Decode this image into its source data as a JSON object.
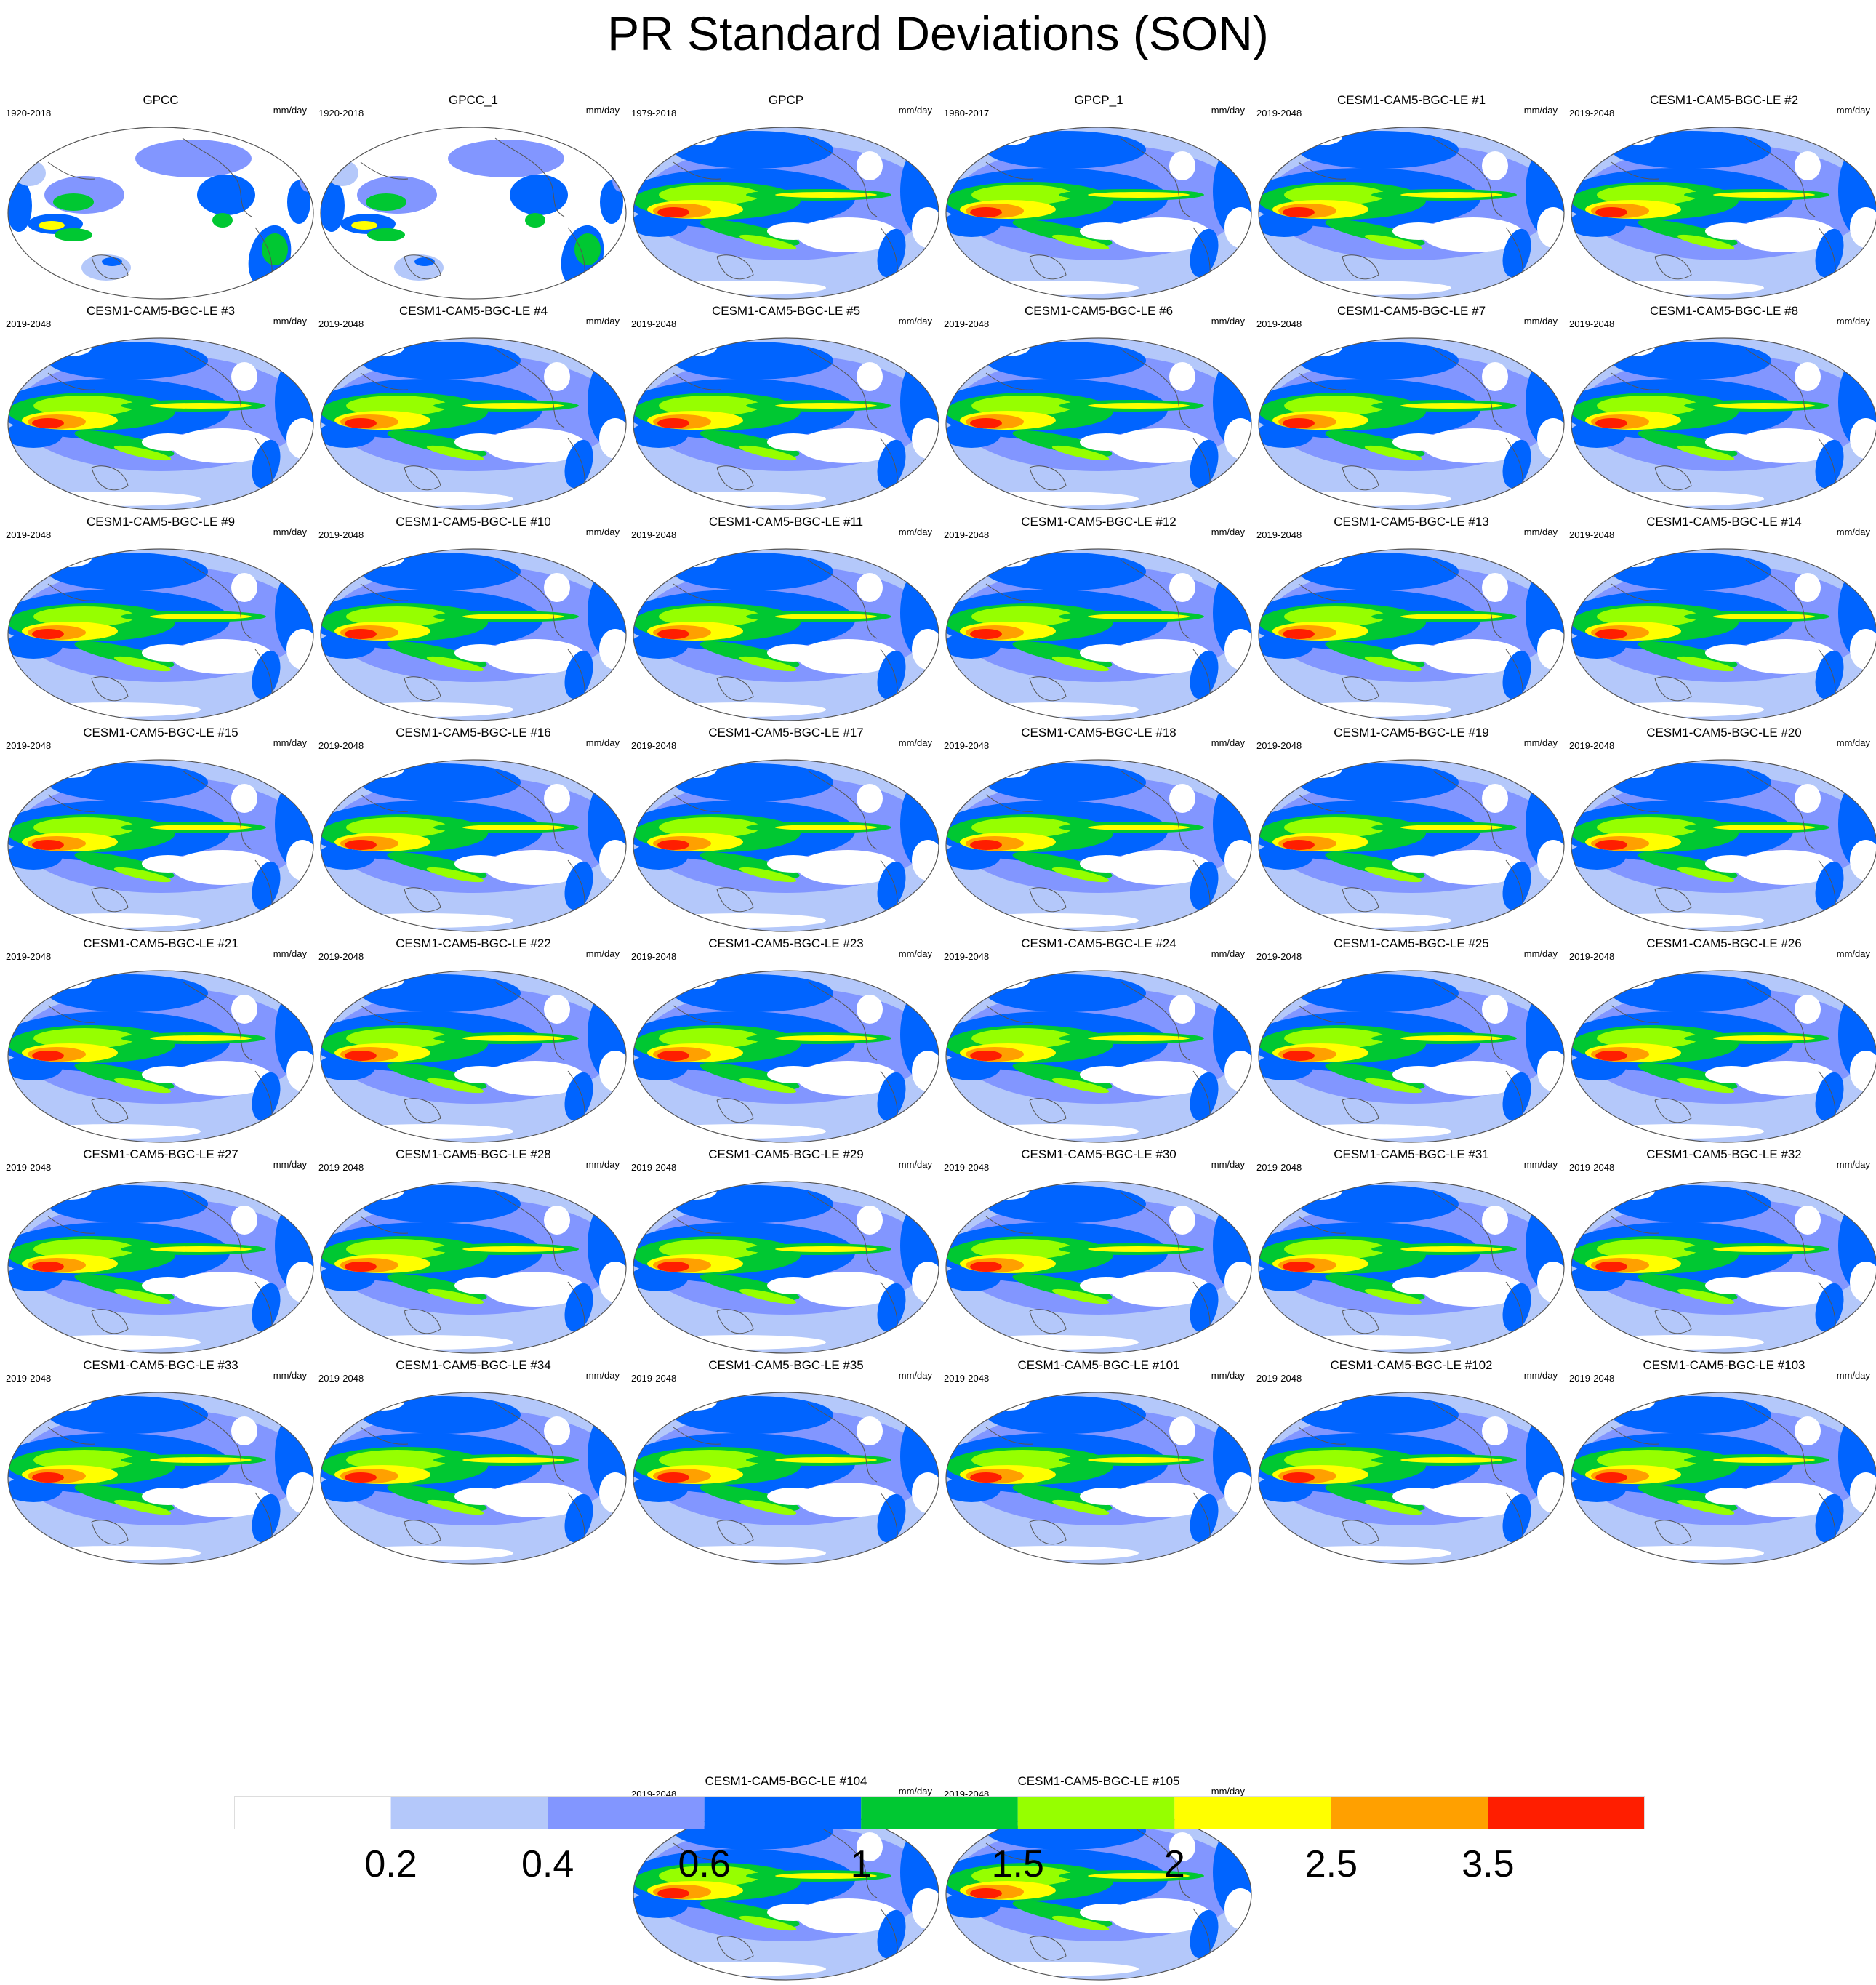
{
  "title": "PR Standard Deviations (SON)",
  "units": "mm/day",
  "panels": [
    {
      "name": "GPCC",
      "period": "1920-2018"
    },
    {
      "name": "GPCC_1",
      "period": "1920-2018"
    },
    {
      "name": "GPCP",
      "period": "1979-2018"
    },
    {
      "name": "GPCP_1",
      "period": "1980-2017"
    },
    {
      "name": "CESM1-CAM5-BGC-LE #1",
      "period": "2019-2048"
    },
    {
      "name": "CESM1-CAM5-BGC-LE #2",
      "period": "2019-2048"
    },
    {
      "name": "CESM1-CAM5-BGC-LE #3",
      "period": "2019-2048"
    },
    {
      "name": "CESM1-CAM5-BGC-LE #4",
      "period": "2019-2048"
    },
    {
      "name": "CESM1-CAM5-BGC-LE #5",
      "period": "2019-2048"
    },
    {
      "name": "CESM1-CAM5-BGC-LE #6",
      "period": "2019-2048"
    },
    {
      "name": "CESM1-CAM5-BGC-LE #7",
      "period": "2019-2048"
    },
    {
      "name": "CESM1-CAM5-BGC-LE #8",
      "period": "2019-2048"
    },
    {
      "name": "CESM1-CAM5-BGC-LE #9",
      "period": "2019-2048"
    },
    {
      "name": "CESM1-CAM5-BGC-LE #10",
      "period": "2019-2048"
    },
    {
      "name": "CESM1-CAM5-BGC-LE #11",
      "period": "2019-2048"
    },
    {
      "name": "CESM1-CAM5-BGC-LE #12",
      "period": "2019-2048"
    },
    {
      "name": "CESM1-CAM5-BGC-LE #13",
      "period": "2019-2048"
    },
    {
      "name": "CESM1-CAM5-BGC-LE #14",
      "period": "2019-2048"
    },
    {
      "name": "CESM1-CAM5-BGC-LE #15",
      "period": "2019-2048"
    },
    {
      "name": "CESM1-CAM5-BGC-LE #16",
      "period": "2019-2048"
    },
    {
      "name": "CESM1-CAM5-BGC-LE #17",
      "period": "2019-2048"
    },
    {
      "name": "CESM1-CAM5-BGC-LE #18",
      "period": "2019-2048"
    },
    {
      "name": "CESM1-CAM5-BGC-LE #19",
      "period": "2019-2048"
    },
    {
      "name": "CESM1-CAM5-BGC-LE #20",
      "period": "2019-2048"
    },
    {
      "name": "CESM1-CAM5-BGC-LE #21",
      "period": "2019-2048"
    },
    {
      "name": "CESM1-CAM5-BGC-LE #22",
      "period": "2019-2048"
    },
    {
      "name": "CESM1-CAM5-BGC-LE #23",
      "period": "2019-2048"
    },
    {
      "name": "CESM1-CAM5-BGC-LE #24",
      "period": "2019-2048"
    },
    {
      "name": "CESM1-CAM5-BGC-LE #25",
      "period": "2019-2048"
    },
    {
      "name": "CESM1-CAM5-BGC-LE #26",
      "period": "2019-2048"
    },
    {
      "name": "CESM1-CAM5-BGC-LE #27",
      "period": "2019-2048"
    },
    {
      "name": "CESM1-CAM5-BGC-LE #28",
      "period": "2019-2048"
    },
    {
      "name": "CESM1-CAM5-BGC-LE #29",
      "period": "2019-2048"
    },
    {
      "name": "CESM1-CAM5-BGC-LE #30",
      "period": "2019-2048"
    },
    {
      "name": "CESM1-CAM5-BGC-LE #31",
      "period": "2019-2048"
    },
    {
      "name": "CESM1-CAM5-BGC-LE #32",
      "period": "2019-2048"
    },
    {
      "name": "CESM1-CAM5-BGC-LE #33",
      "period": "2019-2048"
    },
    {
      "name": "CESM1-CAM5-BGC-LE #34",
      "period": "2019-2048"
    },
    {
      "name": "CESM1-CAM5-BGC-LE #35",
      "period": "2019-2048"
    },
    {
      "name": "CESM1-CAM5-BGC-LE #101",
      "period": "2019-2048"
    },
    {
      "name": "CESM1-CAM5-BGC-LE #102",
      "period": "2019-2048"
    },
    {
      "name": "CESM1-CAM5-BGC-LE #103",
      "period": "2019-2048"
    },
    {
      "name": "CESM1-CAM5-BGC-LE #104",
      "period": "2019-2048"
    },
    {
      "name": "CESM1-CAM5-BGC-LE #105",
      "period": "2019-2048"
    }
  ],
  "colorbar": {
    "colors": [
      "#ffffff",
      "#b4c8fa",
      "#8296ff",
      "#0064ff",
      "#00c832",
      "#96ff00",
      "#ffff00",
      "#ffa000",
      "#ff1e00"
    ],
    "labels": [
      "0.2",
      "0.4",
      "0.6",
      "1",
      "1.5",
      "2",
      "2.5",
      "3.5"
    ]
  }
}
